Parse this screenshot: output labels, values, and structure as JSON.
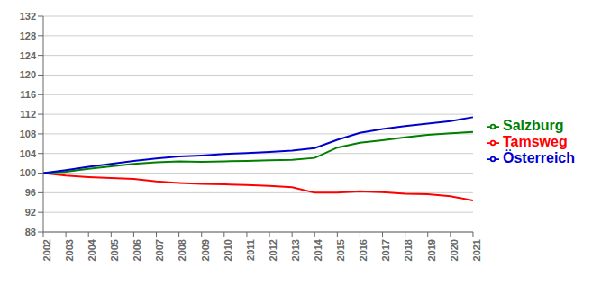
{
  "chart_data": {
    "type": "line",
    "x": [
      2002,
      2003,
      2004,
      2005,
      2006,
      2007,
      2008,
      2009,
      2010,
      2011,
      2012,
      2013,
      2014,
      2015,
      2016,
      2017,
      2018,
      2019,
      2020,
      2021
    ],
    "series": [
      {
        "name": "Tamsweg",
        "color": "#ff0000",
        "values": [
          100.0,
          99.5,
          99.2,
          99.0,
          98.8,
          98.3,
          98.0,
          97.8,
          97.7,
          97.6,
          97.4,
          97.1,
          96.0,
          96.0,
          96.3,
          96.1,
          95.8,
          95.7,
          95.3,
          94.4
        ]
      },
      {
        "name": "Salzburg",
        "color": "#008000",
        "values": [
          100.0,
          100.3,
          100.9,
          101.4,
          101.9,
          102.2,
          102.4,
          102.3,
          102.4,
          102.5,
          102.6,
          102.7,
          103.1,
          105.2,
          106.2,
          106.7,
          107.3,
          107.8,
          108.1,
          108.4
        ]
      },
      {
        "name": "Österreich",
        "color": "#0000cd",
        "values": [
          100.0,
          100.6,
          101.3,
          101.9,
          102.5,
          103.0,
          103.4,
          103.6,
          103.9,
          104.1,
          104.3,
          104.6,
          105.1,
          106.8,
          108.2,
          109.0,
          109.6,
          110.1,
          110.6,
          111.4
        ]
      }
    ],
    "xlim": [
      2002,
      2021
    ],
    "xticks": [
      2002,
      2003,
      2004,
      2005,
      2006,
      2007,
      2008,
      2009,
      2010,
      2011,
      2012,
      2013,
      2014,
      2015,
      2016,
      2017,
      2018,
      2019,
      2020,
      2021
    ],
    "ylim": [
      88,
      132
    ],
    "yticks": [
      88,
      92,
      96,
      100,
      104,
      108,
      112,
      116,
      120,
      124,
      128,
      132
    ],
    "grid": true,
    "legend": "right"
  }
}
